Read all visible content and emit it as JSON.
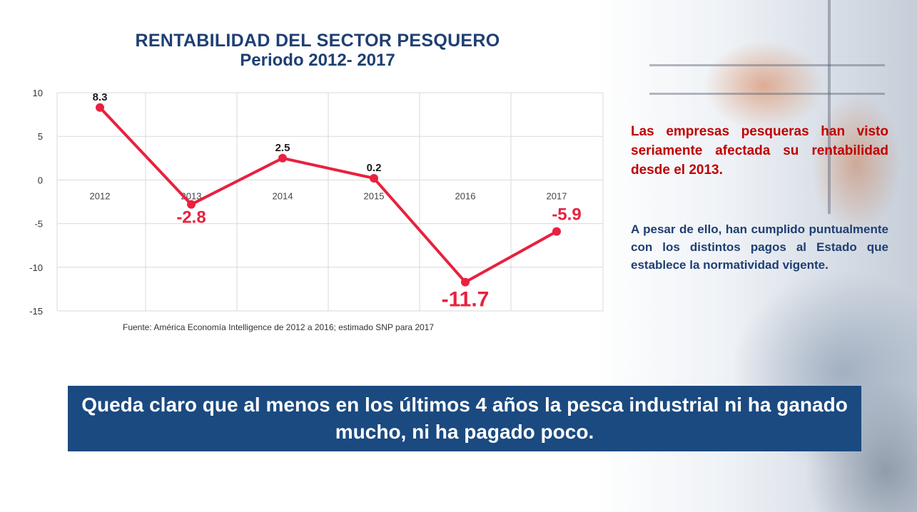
{
  "title": {
    "line1": "RENTABILIDAD DEL SECTOR PESQUERO",
    "line2": "Periodo 2012- 2017"
  },
  "chart_data": {
    "type": "line",
    "categories": [
      "2012",
      "2013",
      "2014",
      "2015",
      "2016",
      "2017"
    ],
    "values": [
      8.3,
      -2.8,
      2.5,
      0.2,
      -11.7,
      -5.9
    ],
    "data_labels": [
      "8.3",
      "-2.8",
      "2.5",
      "0.2",
      "-11.7",
      "-5.9"
    ],
    "yticks": [
      "10",
      "5",
      "0",
      "-5",
      "-10",
      "-15"
    ],
    "ylim": [
      -15,
      10
    ],
    "grid": true,
    "line_color": "#e8213f",
    "negative_label_color": "#e8213f",
    "positive_label_color": "#1a1a1a"
  },
  "source": "Fuente: América Economía Intelligence de 2012 a 2016; estimado SNP para 2017",
  "side": {
    "red_text": "Las empresas pesqueras han visto seriamente afectada su rentabilidad desde el 2013.",
    "blue_text": "A pesar de ello, han cumplido puntualmente con los distintos pagos al Estado que establece la normatividad vigente."
  },
  "banner": {
    "text": "Queda claro que al menos en los últimos 4 años la pesca industrial ni ha ganado mucho, ni ha pagado poco."
  },
  "colors": {
    "navy": "#1f3f72",
    "banner_bg": "#1b4a80",
    "accent_red": "#c00000"
  }
}
